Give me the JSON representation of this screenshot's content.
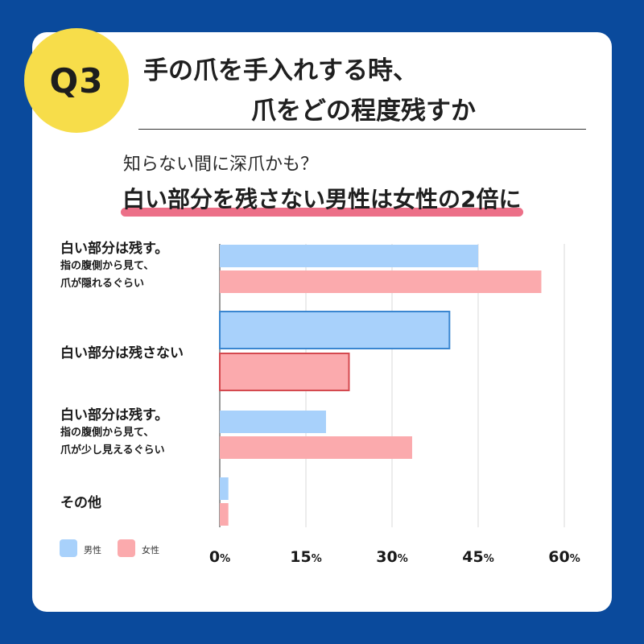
{
  "badge": "Q3",
  "title_line1": "手の爪を手入れする時、",
  "title_line2": "爪をどの程度残すか",
  "subtitle": "知らない間に深爪かも？",
  "headline": "白い部分を残さない男性は女性の2倍に",
  "colors": {
    "background": "#0a4a9c",
    "badge": "#f7dd4a",
    "male_fill": "#a8d1fb",
    "male_stroke": "#3a86d0",
    "female_fill": "#fbaaad",
    "female_stroke": "#d4494f",
    "highlight": "#ec7088",
    "grid": "#d8d8d8"
  },
  "categories": [
    {
      "main": "白い部分は残す。",
      "note_lines": [
        "指の腹側から見て、",
        "爪が隠れるぐらい"
      ]
    },
    {
      "main": "白い部分は残さない",
      "note_lines": []
    },
    {
      "main": "白い部分は残す。",
      "note_lines": [
        "指の腹側から見て、",
        "爪が少し見えるぐらい"
      ]
    },
    {
      "main": "その他",
      "note_lines": []
    }
  ],
  "legend": {
    "male": "男性",
    "female": "女性"
  },
  "chart_data": {
    "type": "bar",
    "orientation": "horizontal",
    "categories": [
      "白い部分は残す。指の腹側から見て、爪が隠れるぐらい",
      "白い部分は残さない",
      "白い部分は残す。指の腹側から見て、爪が少し見えるぐらい",
      "その他"
    ],
    "series": [
      {
        "name": "男性",
        "values": [
          45.0,
          40.0,
          18.5,
          1.5
        ]
      },
      {
        "name": "女性",
        "values": [
          56.0,
          22.5,
          33.5,
          1.5
        ]
      }
    ],
    "highlight_category_index": 1,
    "xlim": [
      0,
      60
    ],
    "xticks": [
      0,
      15,
      30,
      45,
      60
    ],
    "tick_suffix": "%",
    "grid": true,
    "legend_position": "bottom-left"
  }
}
